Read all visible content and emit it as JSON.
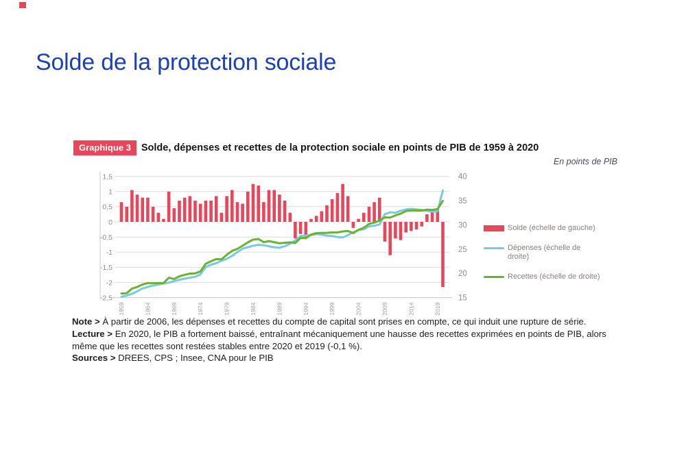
{
  "colors": {
    "accent_red": "#e8465a",
    "title_blue": "#1c41b6",
    "depenses_blue": "#76cbe2",
    "recettes_green": "#69b32e"
  },
  "page": {
    "title": "Solde de la protection sociale"
  },
  "figure": {
    "badge": "Graphique 3",
    "title": "Solde, dépenses et recettes de la protection sociale en points de PIB de 1959 à 2020",
    "unit_label": "En points de PIB"
  },
  "notes": {
    "note_label": "Note >",
    "note_text": "À partir de 2006, les dépenses et recettes du compte de capital sont prises en compte, ce qui induit une rupture de série.",
    "lecture_label": "Lecture >",
    "lecture_text": "En 2020, le PIB a fortement baissé, entraînant mécaniquement une hausse des recettes exprimées en points de PIB, alors même que les recettes sont restées stables entre 2020 et 2019 (-0,1 %).",
    "sources_label": "Sources >",
    "sources_text": "DREES, CPS ; Insee, CNA pour le PIB"
  },
  "chart_data": {
    "type": "bar+line",
    "title": "Solde, dépenses et recettes de la protection sociale en points de PIB de 1959 à 2020",
    "unit_label": "En points de PIB",
    "grid": true,
    "legend_position": "right",
    "years": [
      1959,
      1960,
      1961,
      1962,
      1963,
      1964,
      1965,
      1966,
      1967,
      1968,
      1969,
      1970,
      1971,
      1972,
      1973,
      1974,
      1975,
      1976,
      1977,
      1978,
      1979,
      1980,
      1981,
      1982,
      1983,
      1984,
      1985,
      1986,
      1987,
      1988,
      1989,
      1990,
      1991,
      1992,
      1993,
      1994,
      1995,
      1996,
      1997,
      1998,
      1999,
      2000,
      2001,
      2002,
      2003,
      2004,
      2005,
      2006,
      2007,
      2008,
      2009,
      2010,
      2011,
      2012,
      2013,
      2014,
      2015,
      2016,
      2017,
      2018,
      2019,
      2020
    ],
    "x_ticks": [
      1959,
      1964,
      1969,
      1974,
      1979,
      1984,
      1989,
      1994,
      1999,
      2004,
      2009,
      2014,
      2019
    ],
    "left_axis": {
      "min": -2.5,
      "max": 1.5,
      "tick_values": [
        1.5,
        1,
        0.5,
        0,
        -0.5,
        -1,
        -1.5,
        -2,
        -2.5
      ],
      "tick_labels": [
        "1,5",
        "1",
        "0,5",
        "0",
        "-0,5",
        "-1",
        "-1,5",
        "-2",
        "-2,5"
      ]
    },
    "right_axis": {
      "min": 15,
      "max": 40,
      "tick_values": [
        40,
        35,
        30,
        25,
        20,
        15
      ]
    },
    "series": [
      {
        "name": "Solde (échelle de gauche)",
        "type": "bar",
        "axis": "left",
        "color": "#e8465a",
        "values": [
          0.65,
          0.5,
          1.05,
          0.9,
          0.8,
          0.8,
          0.5,
          0.3,
          0.1,
          1.0,
          0.45,
          0.7,
          0.8,
          0.85,
          0.7,
          0.6,
          0.7,
          0.7,
          0.85,
          0.3,
          0.85,
          1.05,
          0.65,
          0.6,
          1.0,
          1.25,
          1.2,
          0.65,
          1.05,
          1.05,
          0.9,
          0.7,
          0.3,
          -0.55,
          -0.4,
          -0.55,
          0.1,
          0.2,
          0.35,
          0.55,
          0.75,
          0.95,
          1.25,
          0.85,
          -0.2,
          0.1,
          0.3,
          0.5,
          0.65,
          0.8,
          -0.65,
          -1.1,
          -0.55,
          -0.6,
          -0.35,
          -0.3,
          -0.25,
          -0.15,
          0.25,
          0.4,
          0.45,
          -2.15
        ]
      },
      {
        "name": "Dépenses (échelle de droite)",
        "type": "line",
        "axis": "right",
        "color": "#76cbe2",
        "values": [
          15.2,
          15.4,
          15.8,
          16.3,
          16.9,
          17.2,
          17.5,
          17.7,
          17.9,
          18.1,
          18.4,
          18.7,
          18.9,
          19.1,
          19.3,
          19.8,
          21.3,
          21.8,
          22.1,
          22.6,
          23.0,
          23.6,
          24.4,
          25.1,
          25.4,
          25.7,
          25.9,
          25.8,
          25.6,
          25.4,
          25.3,
          25.6,
          26.1,
          26.8,
          27.7,
          27.8,
          27.9,
          28.1,
          28.0,
          27.8,
          27.7,
          27.5,
          27.4,
          27.9,
          28.5,
          28.9,
          29.1,
          29.7,
          29.8,
          30.1,
          32.2,
          32.6,
          32.5,
          32.9,
          33.2,
          33.3,
          33.2,
          33.1,
          32.9,
          32.7,
          32.8,
          37.1
        ]
      },
      {
        "name": "Recettes (échelle de droite)",
        "type": "line",
        "axis": "right",
        "color": "#69b32e",
        "values": [
          15.85,
          15.9,
          16.85,
          17.2,
          17.7,
          18.0,
          18.0,
          18.0,
          18.0,
          19.1,
          18.85,
          19.4,
          19.7,
          19.95,
          20.0,
          20.4,
          22.0,
          22.5,
          22.95,
          22.9,
          23.85,
          24.65,
          25.05,
          25.7,
          26.4,
          26.95,
          27.1,
          26.45,
          26.65,
          26.45,
          26.2,
          26.3,
          26.4,
          26.25,
          27.3,
          27.25,
          28.0,
          28.3,
          28.35,
          28.35,
          28.45,
          28.45,
          28.65,
          28.75,
          28.3,
          29.0,
          29.4,
          30.2,
          30.45,
          30.9,
          31.55,
          31.5,
          31.95,
          32.3,
          32.85,
          33.0,
          32.95,
          32.95,
          33.15,
          33.1,
          33.25,
          34.95
        ]
      }
    ]
  }
}
